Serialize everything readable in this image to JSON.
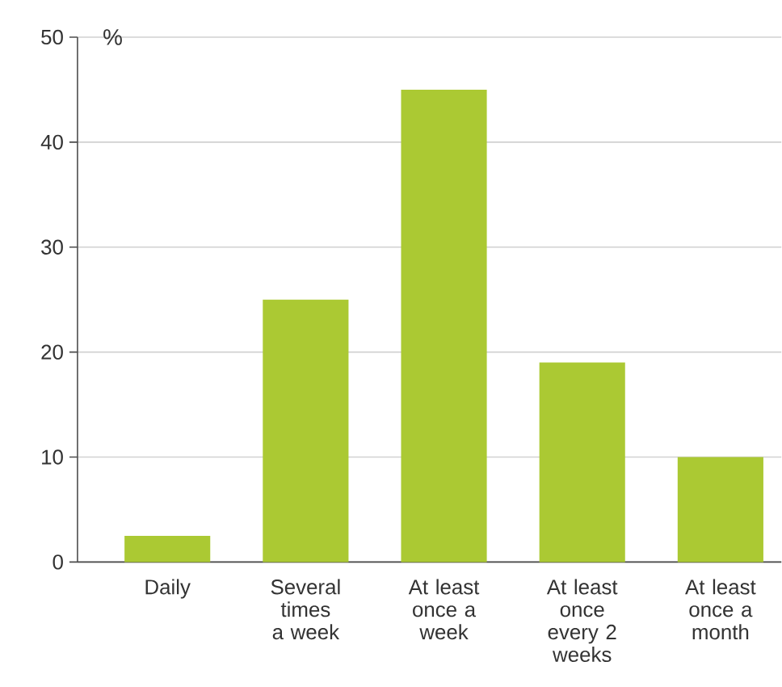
{
  "chart_data": {
    "type": "bar",
    "ylabel": "%",
    "categories": [
      "Daily",
      "Several times a week",
      "At least once a week",
      "At least once every 2 weeks",
      "At least once a month"
    ],
    "values": [
      2.5,
      25,
      45,
      19,
      10
    ],
    "color": "#abc933",
    "ylim": [
      0,
      50
    ],
    "yticks": [
      0,
      10,
      20,
      30,
      40,
      50
    ],
    "grid": "y"
  }
}
